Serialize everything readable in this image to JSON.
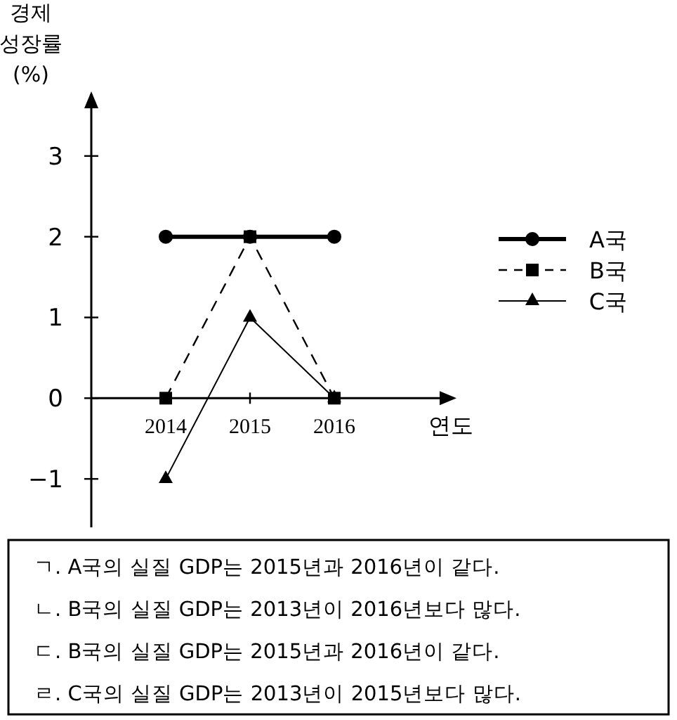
{
  "chart_data": {
    "type": "line",
    "ylabel": "경제\n성장률\n(%)",
    "xlabel": "연도",
    "categories": [
      "2014",
      "2015",
      "2016"
    ],
    "ylim": [
      -1.6,
      3.8
    ],
    "yticks": [
      {
        "value": -1,
        "label": "−1"
      },
      0,
      1,
      2,
      3
    ],
    "legend": "right",
    "series": [
      {
        "name": "A국",
        "color": "#000000",
        "values": [
          2,
          2,
          2
        ],
        "marker": "circle",
        "line_style": "solid"
      },
      {
        "name": "B국",
        "color": "#000000",
        "values": [
          0,
          2,
          0
        ],
        "marker": "square",
        "line_style": "dashed"
      },
      {
        "name": "C국",
        "color": "#000000",
        "values": [
          -1,
          1,
          0
        ],
        "marker": "triangle",
        "line_style": "solid"
      }
    ],
    "annotations": [
      "ㄱ. A국의 실질 GDP는 2015년과 2016년이 같다.",
      "ㄴ. B국의 실질 GDP는 2013년이 2016년보다 많다.",
      "ㄷ. B국의 실질 GDP는 2015년과 2016년이 같다.",
      "ㄹ. C국의 실질 GDP는 2013년이 2015년보다 많다."
    ]
  }
}
